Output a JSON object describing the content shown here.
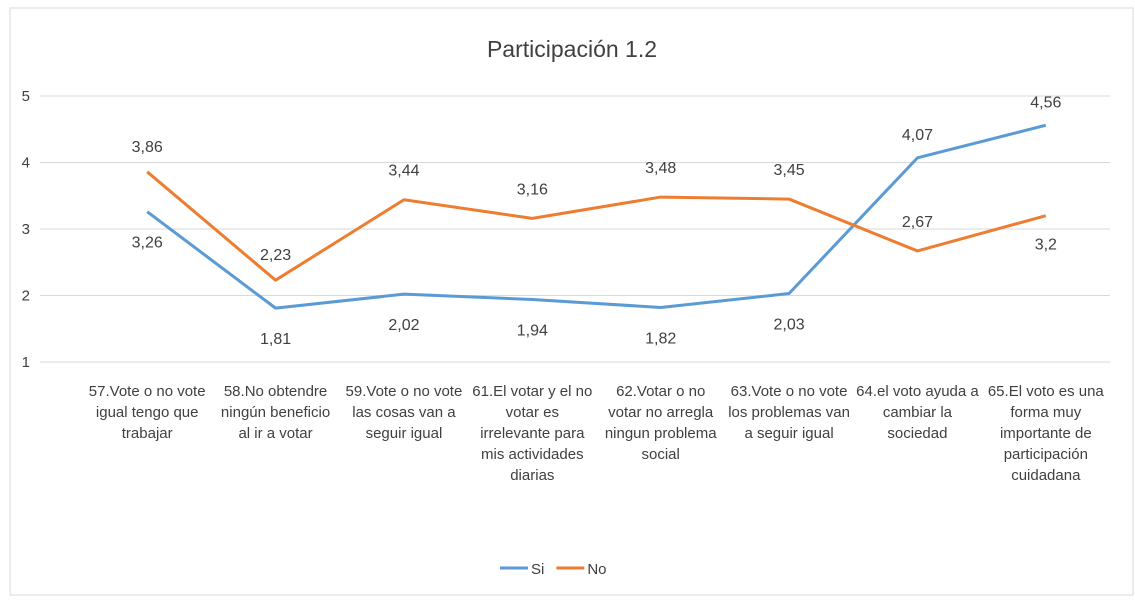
{
  "chart_data": {
    "type": "line",
    "title": "Participación 1.2",
    "categories": [
      "57.Vote o no vote igual tengo que trabajar",
      "58.No obtendre ningún beneficio al ir a votar",
      "59.Vote o no vote las cosas van a seguir igual",
      "61.El votar y el no votar es irrelevante para mis actividades diarias",
      "62.Votar o no votar no arregla ningun problema social",
      "63.Vote o no vote los problemas van a seguir igual",
      "64.el voto ayuda a cambiar la sociedad",
      "65.El voto es una forma muy importante de participación cuidadana"
    ],
    "series": [
      {
        "name": "Si",
        "color": "#5b9bd5",
        "values": [
          3.26,
          1.81,
          2.02,
          1.94,
          1.82,
          2.03,
          4.07,
          4.56
        ],
        "value_labels": [
          "3,26",
          "1,81",
          "2,02",
          "1,94",
          "1,82",
          "2,03",
          "4,07",
          "4,56"
        ]
      },
      {
        "name": "No",
        "color": "#ed7d31",
        "values": [
          3.86,
          2.23,
          3.44,
          3.16,
          3.48,
          3.45,
          2.67,
          3.2
        ],
        "value_labels": [
          "3,86",
          "2,23",
          "3,44",
          "3,16",
          "3,48",
          "3,45",
          "2,67",
          "3,2"
        ]
      }
    ],
    "ylim": [
      1,
      5
    ],
    "yticks": [
      1,
      2,
      3,
      4,
      5
    ],
    "grid": true,
    "legend": "bottom"
  }
}
